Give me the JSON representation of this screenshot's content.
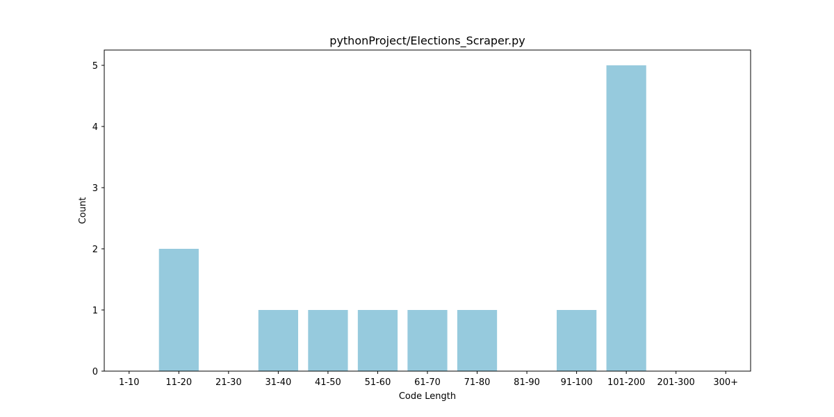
{
  "chart_data": {
    "type": "bar",
    "title": "pythonProject/Elections_Scraper.py",
    "xlabel": "Code Length",
    "ylabel": "Count",
    "categories": [
      "1-10",
      "11-20",
      "21-30",
      "31-40",
      "41-50",
      "51-60",
      "61-70",
      "71-80",
      "81-90",
      "91-100",
      "101-200",
      "201-300",
      "300+"
    ],
    "values": [
      0,
      2,
      0,
      1,
      1,
      1,
      1,
      1,
      0,
      1,
      5,
      0,
      0
    ],
    "ylim": [
      0,
      5.25
    ],
    "yticks": [
      "0",
      "1",
      "2",
      "3",
      "4",
      "5"
    ],
    "bar_color": "#96cadd",
    "grid": false,
    "legend": "none"
  }
}
